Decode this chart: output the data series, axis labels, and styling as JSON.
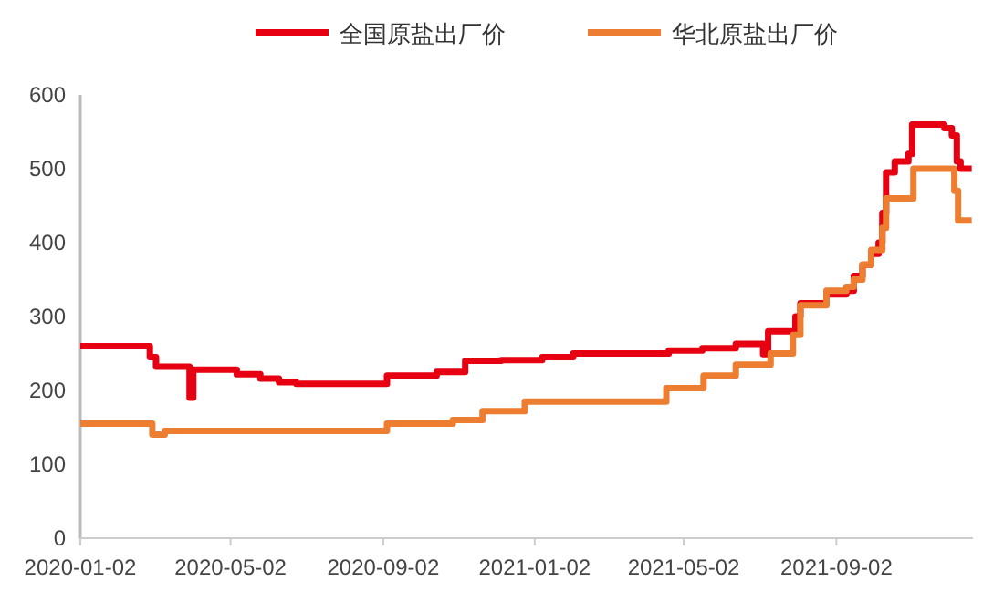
{
  "chart_data": {
    "type": "step",
    "legend": "top",
    "grid": false,
    "line_style": "solid",
    "xlim": [
      "2020-01-02",
      "2021-12-21"
    ],
    "xticks": [
      {
        "value": "2020-01-02",
        "label": "2020-01-02"
      },
      {
        "value": "2020-05-02",
        "label": "2020-05-02"
      },
      {
        "value": "2020-09-02",
        "label": "2020-09-02"
      },
      {
        "value": "2021-01-02",
        "label": "2021-01-02"
      },
      {
        "value": "2021-05-02",
        "label": "2021-05-02"
      },
      {
        "value": "2021-09-02",
        "label": "2021-09-02"
      }
    ],
    "ylim": [
      0,
      600
    ],
    "yticks": [
      0,
      100,
      200,
      300,
      400,
      500,
      600
    ],
    "series": [
      {
        "name": "全国原盐出厂价",
        "color": "#e60012",
        "x": [
          "2020-01-02",
          "2020-02-27",
          "2020-03-03",
          "2020-03-30",
          "2020-04-02",
          "2020-05-07",
          "2020-05-26",
          "2020-06-10",
          "2020-06-24",
          "2020-09-05",
          "2020-10-15",
          "2020-11-07",
          "2020-12-06",
          "2021-01-08",
          "2021-02-02",
          "2021-04-20",
          "2021-05-17",
          "2021-06-13",
          "2021-07-05",
          "2021-07-09",
          "2021-07-31",
          "2021-08-04",
          "2021-08-25",
          "2021-09-10",
          "2021-09-16",
          "2021-09-23",
          "2021-09-30",
          "2021-10-06",
          "2021-10-09",
          "2021-10-12",
          "2021-10-19",
          "2021-10-30",
          "2021-11-02",
          "2021-11-28",
          "2021-12-04",
          "2021-12-08",
          "2021-12-11",
          "2021-12-20"
        ],
        "values": [
          260,
          245,
          232,
          190,
          228,
          222,
          216,
          211,
          209,
          220,
          225,
          240,
          241,
          245,
          250,
          254,
          257,
          263,
          249,
          280,
          300,
          318,
          330,
          335,
          355,
          370,
          385,
          400,
          440,
          495,
          510,
          520,
          560,
          555,
          545,
          510,
          500,
          500
        ]
      },
      {
        "name": "华北原盐出厂价",
        "color": "#ed7d31",
        "x": [
          "2020-01-02",
          "2020-02-29",
          "2020-03-10",
          "2020-09-05",
          "2020-10-28",
          "2020-11-21",
          "2020-12-25",
          "2021-04-18",
          "2021-05-18",
          "2021-06-13",
          "2021-07-11",
          "2021-07-29",
          "2021-08-04",
          "2021-08-25",
          "2021-09-10",
          "2021-09-16",
          "2021-09-23",
          "2021-09-30",
          "2021-10-09",
          "2021-10-12",
          "2021-11-03",
          "2021-12-04",
          "2021-12-06",
          "2021-12-09",
          "2021-12-20"
        ],
        "values": [
          155,
          140,
          145,
          155,
          160,
          172,
          185,
          203,
          220,
          235,
          250,
          275,
          315,
          335,
          340,
          350,
          370,
          390,
          420,
          460,
          500,
          500,
          470,
          430,
          430
        ]
      }
    ]
  }
}
